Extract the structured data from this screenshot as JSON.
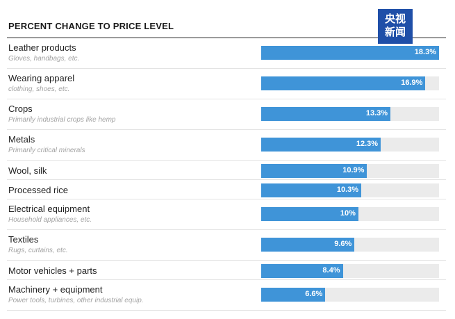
{
  "header": {
    "title": "PERCENT CHANGE TO PRICE LEVEL"
  },
  "watermark": {
    "line1": "央视",
    "line2": "新闻",
    "color": "#1f4fa8"
  },
  "colors": {
    "bar": "#3f94d8",
    "track": "#ebebeb"
  },
  "chart_data": {
    "type": "bar",
    "orientation": "horizontal",
    "title": "PERCENT CHANGE TO PRICE LEVEL",
    "xlim": [
      0,
      18.3
    ],
    "grid": false,
    "categories": [
      {
        "label": "Leather products",
        "sub": "Gloves, handbags, etc.",
        "value": 18.3,
        "value_label": "18.3%"
      },
      {
        "label": "Wearing apparel",
        "sub": "clothing, shoes, etc.",
        "value": 16.9,
        "value_label": "16.9%"
      },
      {
        "label": "Crops",
        "sub": "Primarily industrial crops like hemp",
        "value": 13.3,
        "value_label": "13.3%"
      },
      {
        "label": "Metals",
        "sub": "Primarily critical minerals",
        "value": 12.3,
        "value_label": "12.3%"
      },
      {
        "label": "Wool, silk",
        "sub": "",
        "value": 10.9,
        "value_label": "10.9%"
      },
      {
        "label": "Processed rice",
        "sub": "",
        "value": 10.3,
        "value_label": "10.3%"
      },
      {
        "label": "Electrical equipment",
        "sub": "Household appliances, etc.",
        "value": 10,
        "value_label": "10%"
      },
      {
        "label": "Textiles",
        "sub": "Rugs, curtains, etc.",
        "value": 9.6,
        "value_label": "9.6%"
      },
      {
        "label": "Motor vehicles + parts",
        "sub": "",
        "value": 8.4,
        "value_label": "8.4%"
      },
      {
        "label": "Machinery + equipment",
        "sub": "Power tools, turbines, other industrial equip.",
        "value": 6.6,
        "value_label": "6.6%"
      }
    ]
  }
}
